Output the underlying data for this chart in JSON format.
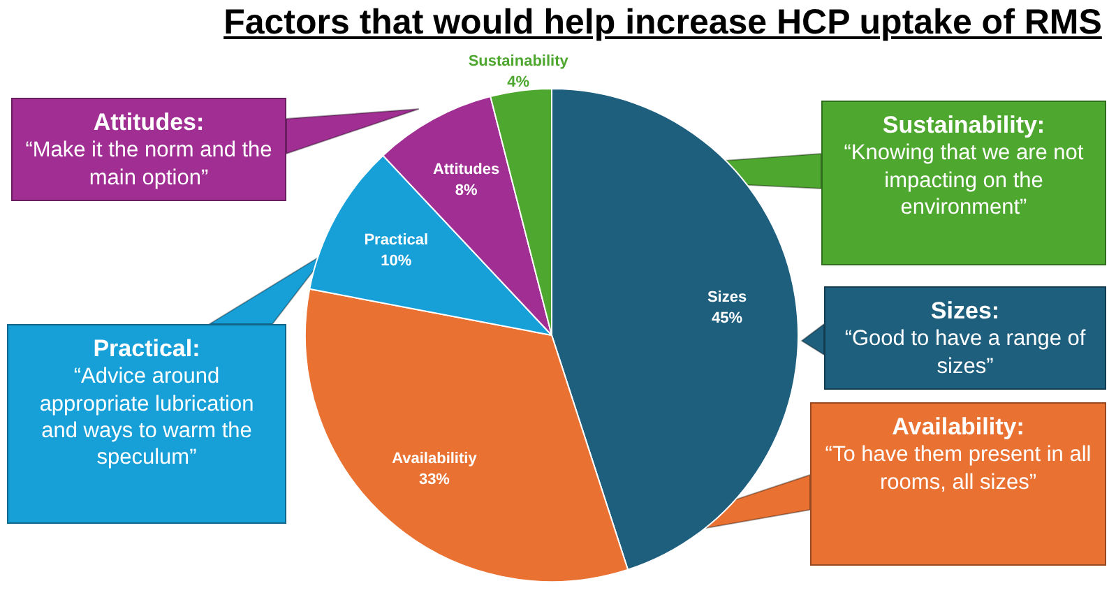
{
  "chart_data": {
    "type": "pie",
    "title": "Factors that would help increase HCP uptake of RMS",
    "categories": [
      "Sizes",
      "Availabilitiy",
      "Practical",
      "Attitudes",
      "Sustainability"
    ],
    "values": [
      45,
      33,
      10,
      8,
      4
    ],
    "colors": [
      "#1e5f7e",
      "#e97132",
      "#179fd8",
      "#a12f93",
      "#4ea72e"
    ],
    "value_labels": [
      "45%",
      "33%",
      "10%",
      "8%",
      "4%"
    ],
    "legend": false,
    "annotations": [
      "Sizes:\n“Good to have a range of sizes”",
      "Availability:\n“To have them present in all rooms, all sizes”",
      "Practical:\n“Advice around appropriate lubrication and ways to warm the speculum”",
      "Attitudes:\n“Make it the norm and the main option”",
      "Sustainability:\n“Knowing that we are not impacting on the environment”"
    ]
  }
}
